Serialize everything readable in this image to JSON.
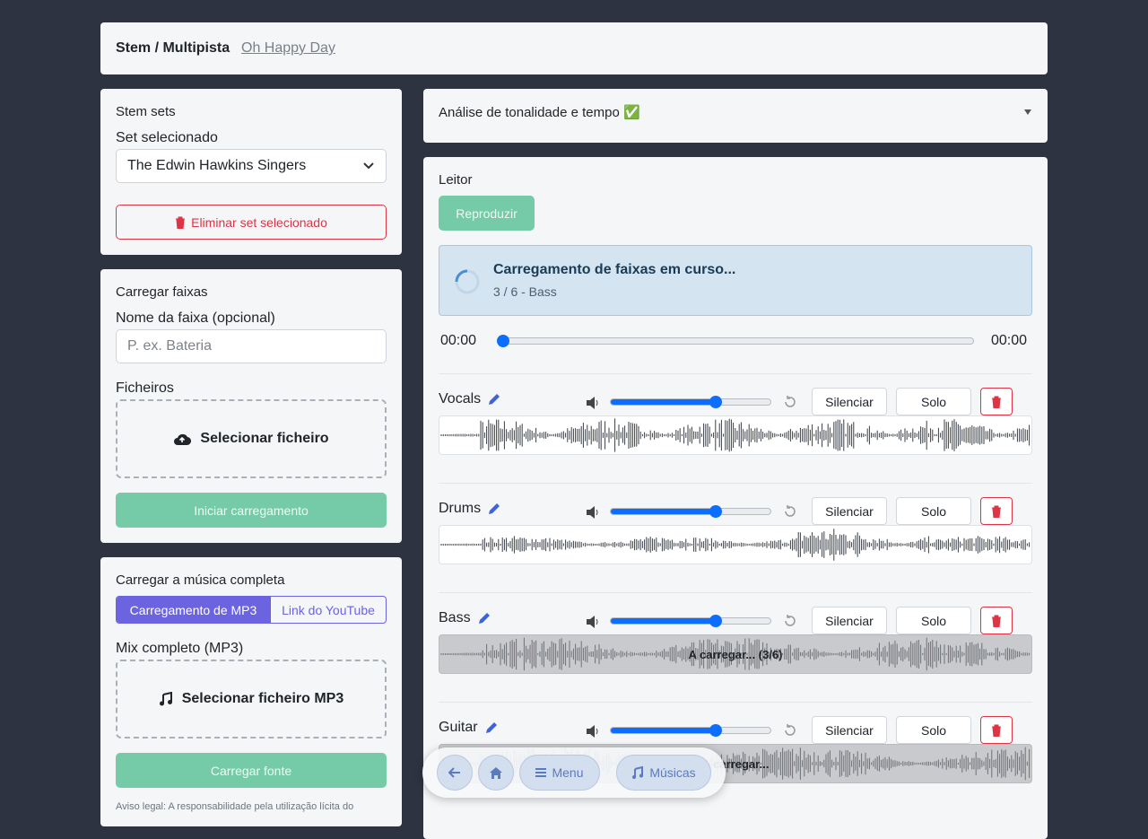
{
  "header": {
    "title": "Stem / Multipista",
    "song": "Oh Happy Day"
  },
  "stem_sets": {
    "title": "Stem sets",
    "label": "Set selecionado",
    "selected": "The Edwin Hawkins Singers",
    "delete": "Eliminar set selecionado"
  },
  "upload_tracks": {
    "title": "Carregar faixas",
    "name_label": "Nome da faixa (opcional)",
    "name_placeholder": "P. ex. Bateria",
    "files_label": "Ficheiros",
    "select_file": "Selecionar ficheiro",
    "start": "Iniciar carregamento"
  },
  "full_song": {
    "title": "Carregar a música completa",
    "tabs": [
      "Carregamento de MP3",
      "Link do YouTube"
    ],
    "mix_label": "Mix completo (MP3)",
    "select_file": "Selecionar ficheiro MP3",
    "load": "Carregar fonte",
    "notice": "Aviso legal: A responsabilidade pela utilização lícita do"
  },
  "analysis": {
    "title": "Análise de tonalidade e tempo ✅"
  },
  "player": {
    "title": "Leitor",
    "play": "Reproduzir",
    "loading_title": "Carregamento de faixas em curso...",
    "loading_detail": "3 / 6 - Bass",
    "time_current": "00:00",
    "time_total": "00:00",
    "mute": "Silenciar",
    "solo": "Solo",
    "tracks": [
      {
        "name": "Vocals"
      },
      {
        "name": "Drums"
      },
      {
        "name": "Bass",
        "status": "A carregar... (3/6)"
      },
      {
        "name": "Guitar",
        "status": "A carregar..."
      }
    ]
  },
  "nav": {
    "menu": "Menu",
    "songs": "Músicas"
  }
}
